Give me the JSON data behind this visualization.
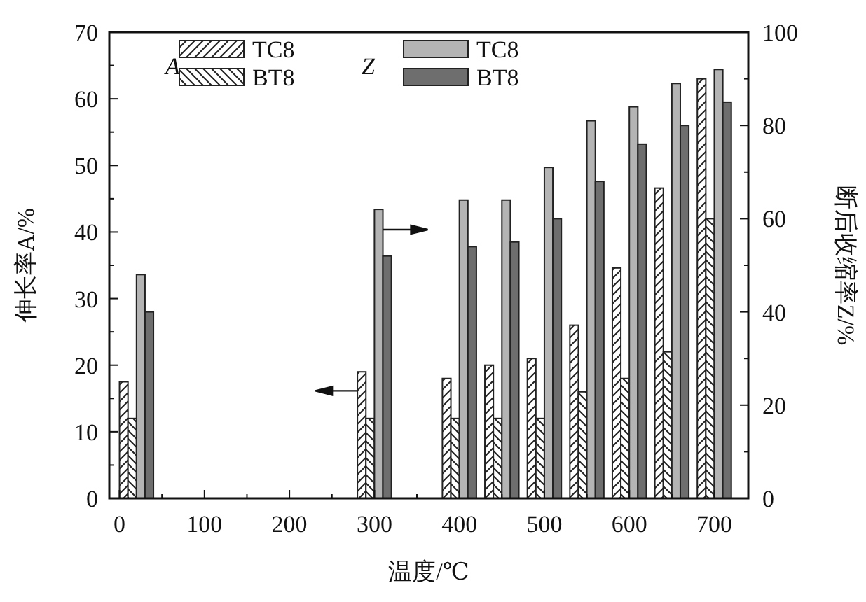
{
  "chart_data": {
    "type": "bar",
    "x": [
      20,
      300,
      400,
      450,
      500,
      550,
      600,
      650,
      700
    ],
    "series": [
      {
        "name": "TC8",
        "color": "#222222",
        "values": [
          17.5,
          19,
          18,
          20,
          21,
          26,
          34.6,
          46.6,
          63
        ]
      },
      {
        "name": "BT8",
        "color": "#222222",
        "values": [
          12,
          12,
          12,
          12,
          12,
          16,
          18,
          22,
          42
        ]
      },
      {
        "name": "TC8",
        "color": "#b4b4b4",
        "axis": "y2",
        "values": [
          48,
          62,
          64,
          64,
          71,
          81,
          84,
          89,
          92
        ]
      },
      {
        "name": "BT8",
        "color": "#6e6e6e",
        "axis": "y2",
        "values": [
          40,
          52,
          54,
          55,
          60,
          68,
          76,
          80,
          85
        ]
      }
    ],
    "xlabel": "温度/℃",
    "ylabel": "伸长率A/%",
    "y2label": "断后收缩率Z/%",
    "annotations": [
      "*A*",
      "*Z*"
    ],
    "xlim": [
      -12,
      740
    ],
    "xticks": [
      0,
      100,
      200,
      300,
      400,
      500,
      600,
      700
    ],
    "ylim": [
      0,
      70
    ],
    "yticks": [
      0,
      10,
      20,
      30,
      40,
      50,
      60,
      70
    ],
    "y2lim": [
      0,
      100
    ],
    "y2ticks": [
      0,
      20,
      40,
      60,
      80,
      100
    ],
    "legend": "top left",
    "grid": false
  }
}
